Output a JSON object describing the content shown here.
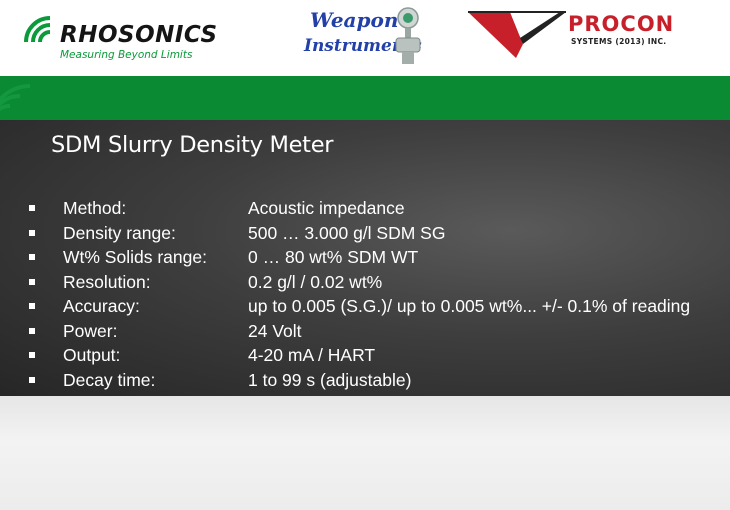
{
  "logos": {
    "rhosonics": {
      "brand": "RHOSONICS",
      "tagline": "Measuring Beyond Limits"
    },
    "weapon": {
      "line1": "Weapon",
      "line2": "Instruments"
    },
    "procon": {
      "name": "PROCON",
      "subtitle": "SYSTEMS (2013) INC."
    }
  },
  "colors": {
    "green_band": "#0b8a34",
    "slide_background": "#3a3a3a",
    "text": "#ffffff",
    "procon_red": "#c8202a",
    "weapon_blue": "#2340a8"
  },
  "slide": {
    "title": "SDM Slurry Density Meter",
    "specs": [
      {
        "label": "Method:",
        "value": "Acoustic impedance"
      },
      {
        "label": "Density range:",
        "value": "500 … 3.000 g/l   SDM SG"
      },
      {
        "label": "Wt% Solids range:",
        "value": " 0 … 80 wt%    SDM WT"
      },
      {
        "label": "Resolution:",
        "value": "0.2 g/l  /  0.02 wt%"
      },
      {
        "label": "Accuracy:",
        "value": "up to 0.005 (S.G.)/ up to 0.005 wt%... +/- 0.1% of reading"
      },
      {
        "label": "Power:",
        "value": "24 Volt"
      },
      {
        "label": "Output:",
        "value": "4-20 mA / HART"
      },
      {
        "label": "Decay time:",
        "value": "1 to 99 s (adjustable)"
      }
    ]
  }
}
